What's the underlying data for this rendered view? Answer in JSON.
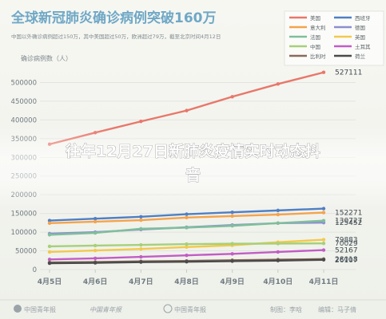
{
  "header": {
    "title": "全球新冠肺炎确诊病例突破160万",
    "subtitle": "中国以外确诊病例超过150万，其中美国超过50万，欧洲超过79万，截至北京时间4月12日",
    "ylabel": "确诊病例数（人）"
  },
  "overlay": {
    "headline_line1": "往年12月27日新肺炎疫情实时动态抖",
    "headline_line2": "音"
  },
  "footer": {
    "logos": [
      "中国青年报",
      "中国青年报"
    ],
    "channel": "中国青年报",
    "credit_label": "制图：",
    "author1": "李晗",
    "editor_label": "编辑：",
    "author2": "马子倩"
  },
  "chart_data": {
    "type": "line",
    "categories": [
      "4月5日",
      "4月6日",
      "4月7日",
      "4月8日",
      "4月9日",
      "4月10日",
      "4月11日"
    ],
    "ylim": [
      0,
      550000
    ],
    "yticks": [
      0,
      50000,
      100000,
      150000,
      200000,
      250000,
      300000,
      350000,
      400000,
      450000,
      500000
    ],
    "ytick_labels": [
      "0",
      "50000",
      "100000",
      "150000",
      "200000",
      "250000",
      "300000",
      "350000",
      "400000",
      "450000",
      "500000"
    ],
    "grid": true,
    "legend_position": "top-right",
    "series": [
      {
        "name": "美国",
        "color": "#e8776a",
        "values": [
          335000,
          366000,
          396000,
          425000,
          462000,
          496000,
          527111
        ],
        "end_label": "527111"
      },
      {
        "name": "西班牙",
        "color": "#4e7fc4",
        "values": [
          131000,
          136000,
          141000,
          148000,
          153000,
          158000,
          163027
        ],
        "end_label": ""
      },
      {
        "name": "意大利",
        "color": "#f4a34c",
        "values": [
          124000,
          128000,
          132000,
          139000,
          143000,
          147000,
          152271
        ],
        "end_label": "152271"
      },
      {
        "name": "德国",
        "color": "#8b8fd0",
        "values": [
          96000,
          100000,
          107000,
          113000,
          119000,
          124000,
          125452
        ],
        "end_label": "125452"
      },
      {
        "name": "法国",
        "color": "#7fbf9a",
        "values": [
          93000,
          98000,
          109000,
          112000,
          117000,
          124000,
          130727
        ],
        "end_label": "130727"
      },
      {
        "name": "英国",
        "color": "#f2c94c",
        "values": [
          47000,
          51000,
          55000,
          60000,
          65000,
          73000,
          79883
        ],
        "end_label": "79883"
      },
      {
        "name": "中国",
        "color": "#a6d07a",
        "values": [
          62000,
          64000,
          66000,
          68000,
          69000,
          69500,
          70029
        ],
        "end_label": "70029"
      },
      {
        "name": "土耳其",
        "color": "#c25cc5",
        "values": [
          27000,
          30000,
          34000,
          38000,
          42000,
          47000,
          52167
        ],
        "end_label": "52167"
      },
      {
        "name": "比利时",
        "color": "#8a6a5a",
        "values": [
          19000,
          20000,
          22000,
          23000,
          25000,
          26500,
          28018
        ],
        "end_label": "28018"
      },
      {
        "name": "荷兰",
        "color": "#4a4a4a",
        "values": [
          17000,
          18000,
          20000,
          21000,
          22500,
          24000,
          26107
        ],
        "end_label": "26107"
      }
    ]
  }
}
